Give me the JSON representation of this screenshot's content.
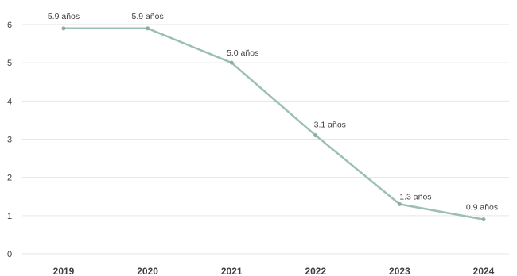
{
  "chart_data": {
    "type": "line",
    "title": "",
    "xlabel": "",
    "ylabel": "",
    "categories": [
      "2019",
      "2020",
      "2021",
      "2022",
      "2023",
      "2024"
    ],
    "series": [
      {
        "values": [
          5.9,
          5.9,
          5.0,
          3.1,
          1.3,
          0.9
        ],
        "data_labels": [
          "5.9 años",
          "5.9 años",
          "5.0 años",
          "3.1 años",
          "1.3 años",
          "0.9 años"
        ]
      }
    ],
    "ylim": [
      0,
      6
    ],
    "yticks": [
      0,
      1,
      2,
      3,
      4,
      5,
      6
    ],
    "grid": true,
    "legend": "none"
  },
  "colors": {
    "line": "#9bbfb7",
    "marker": "#8aaea6",
    "grid": "#e6e6e6",
    "text": "#404040"
  }
}
